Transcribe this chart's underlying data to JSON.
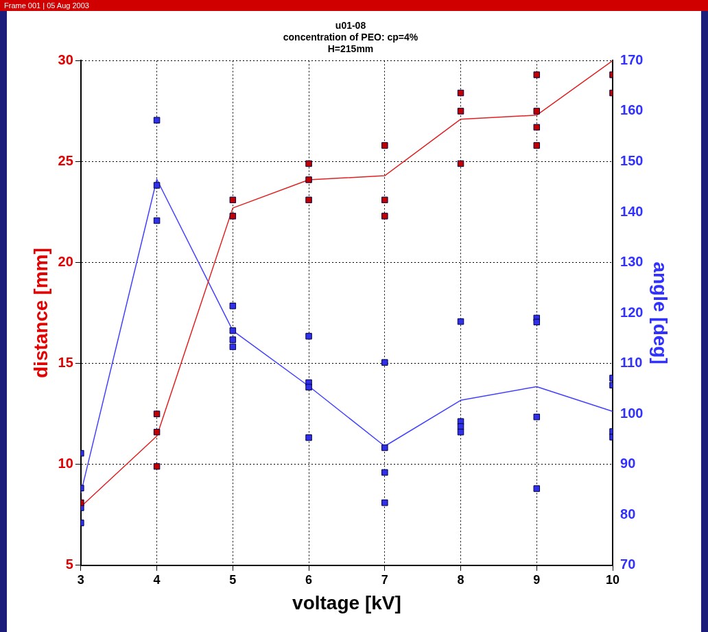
{
  "chart_data": {
    "type": "scatter",
    "title": "u01-08\nconcentration of PEO: cp=4%\nH=215mm",
    "xlabel": "voltage [kV]",
    "ylabel": "distance [mm]",
    "y2label": "angle [deg]",
    "annotations": [
      "Frame 001 | 05 Aug 2003"
    ],
    "xlim": [
      3,
      10
    ],
    "xticks": [
      3,
      4,
      5,
      6,
      7,
      8,
      9,
      10
    ],
    "ylim": [
      5,
      30
    ],
    "yticks": [
      5,
      10,
      15,
      20,
      25,
      30
    ],
    "y2lim": [
      70,
      170
    ],
    "y2ticks": [
      70,
      80,
      90,
      100,
      110,
      120,
      130,
      140,
      150,
      160,
      170
    ],
    "grid": true,
    "legend": false,
    "series": [
      {
        "marker": "square",
        "color": "#c00000",
        "x": [
          3,
          4,
          4,
          4,
          5,
          5,
          6,
          6,
          6,
          7,
          7,
          7,
          8,
          8,
          8,
          9,
          9,
          9,
          9,
          10,
          10
        ],
        "values": [
          8.1,
          12.5,
          11.6,
          9.9,
          23.1,
          22.3,
          24.9,
          24.1,
          23.1,
          25.8,
          23.1,
          22.3,
          28.4,
          27.5,
          24.9,
          29.3,
          27.5,
          26.7,
          25.8,
          29.3,
          28.4
        ]
      },
      {
        "type": "line",
        "marker": "none",
        "color": "#e02020",
        "x": [
          3,
          4,
          5,
          6,
          7,
          8,
          9,
          10
        ],
        "values": [
          7.9,
          11.4,
          22.7,
          24.1,
          24.3,
          27.1,
          27.3,
          30
        ]
      },
      {
        "marker": "square",
        "axis": "y2",
        "color": "#3030e8",
        "x": [
          3,
          3,
          3,
          3,
          4,
          4,
          4,
          5,
          5,
          5,
          5,
          6,
          6,
          6,
          6,
          7,
          7,
          7,
          7,
          8,
          8,
          8,
          8,
          9,
          9,
          9,
          9,
          10,
          10,
          10,
          10
        ],
        "values": [
          92.2,
          85.3,
          81.4,
          78.4,
          158.2,
          145.3,
          138.3,
          121.4,
          116.5,
          114.7,
          113.3,
          115.4,
          106.2,
          105.3,
          95.3,
          110.2,
          93.3,
          88.4,
          82.4,
          118.3,
          98.5,
          97.5,
          96.4,
          119.0,
          118.2,
          99.4,
          85.2,
          107.1,
          105.7,
          96.5,
          95.4
        ]
      },
      {
        "type": "line",
        "marker": "none",
        "axis": "y2",
        "color": "#4040ff",
        "x": [
          3,
          4,
          5,
          6,
          7,
          8,
          9,
          10
        ],
        "values": [
          84.3,
          146.5,
          116.5,
          105.5,
          93.6,
          102.7,
          105.4,
          100.5
        ]
      }
    ]
  }
}
